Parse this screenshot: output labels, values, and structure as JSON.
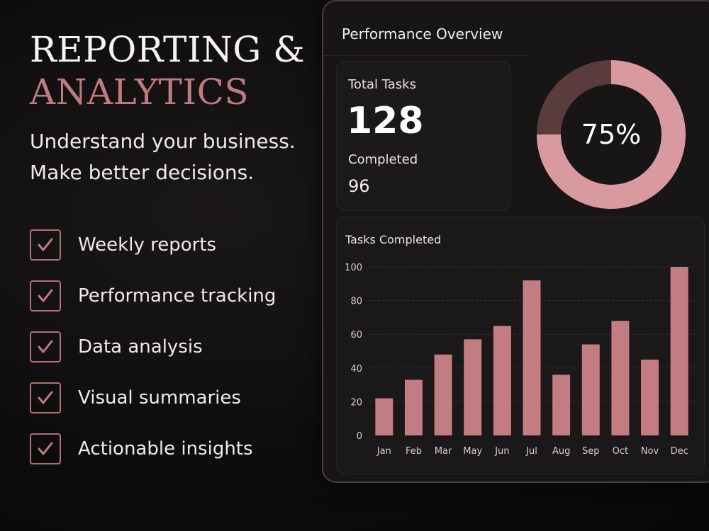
{
  "hero": {
    "title_line1": "REPORTING &",
    "title_line2": "ANALYTICS",
    "tagline_line1": "Understand your business.",
    "tagline_line2": "Make better decisions."
  },
  "features": [
    {
      "label": "Weekly reports",
      "checked": true
    },
    {
      "label": "Performance tracking",
      "checked": true
    },
    {
      "label": "Data analysis",
      "checked": true
    },
    {
      "label": "Visual summaries",
      "checked": true
    },
    {
      "label": "Actionable insights",
      "checked": true
    }
  ],
  "panel": {
    "title": "Performance Overview",
    "total_tasks_label": "Total Tasks",
    "total_tasks_value": "128",
    "completed_label": "Completed",
    "completed_value": "96",
    "donut_percent_text": "75%",
    "donut_fraction": 0.75
  },
  "colors": {
    "accent": "#c07b80",
    "bar": "#c37d82",
    "donut_filled": "#d99a9f",
    "donut_remaining": "#5a3b3e",
    "check": "#b46f74"
  },
  "icons": {
    "check": "check-icon"
  },
  "chart_data": {
    "type": "bar",
    "title": "Tasks Completed",
    "categories": [
      "Jan",
      "Feb",
      "Mar",
      "May",
      "Jun",
      "Jul",
      "Aug",
      "Sep",
      "Oct",
      "Nov",
      "Dec"
    ],
    "values": [
      22,
      33,
      48,
      57,
      65,
      92,
      36,
      54,
      68,
      45,
      100
    ],
    "yticks": [
      "0",
      "20",
      "40",
      "60",
      "80",
      "100"
    ],
    "ylim": [
      0,
      100
    ],
    "grid": true
  }
}
